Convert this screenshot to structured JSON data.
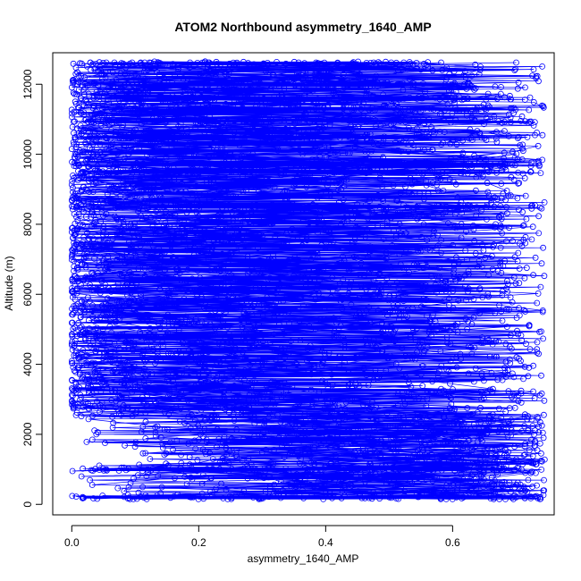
{
  "chart_data": {
    "type": "scatter",
    "title": "ATOM2 Northbound asymmetry_1640_AMP",
    "xlabel": "asymmetry_1640_AMP",
    "ylabel": "Altitude (m)",
    "xlim": [
      -0.03,
      0.76
    ],
    "ylim": [
      -300,
      12900
    ],
    "xticks": [
      0.0,
      0.2,
      0.4,
      0.6
    ],
    "xtick_labels": [
      "0.0",
      "0.2",
      "0.4",
      "0.6"
    ],
    "yticks": [
      0,
      2000,
      4000,
      6000,
      8000,
      10000,
      12000
    ],
    "ytick_labels": [
      "0",
      "2000",
      "4000",
      "6000",
      "8000",
      "10000",
      "12000"
    ],
    "grid": false,
    "legend": "none",
    "marker": "open-circle",
    "connect_points": true,
    "series_color": "#0000ff",
    "x_extent": [
      0.0,
      0.745
    ],
    "y_extent": [
      150,
      12620
    ],
    "levels": [
      {
        "altitude": 12600,
        "x_min": 0.01,
        "x_max": 0.58
      },
      {
        "altitude": 12000,
        "x_min": 0.01,
        "x_max": 0.63
      },
      {
        "altitude": 11600,
        "x_min": 0.02,
        "x_max": 0.73
      },
      {
        "altitude": 11300,
        "x_min": 0.01,
        "x_max": 0.71
      },
      {
        "altitude": 10950,
        "x_min": 0.0,
        "x_max": 0.73
      },
      {
        "altitude": 10500,
        "x_min": 0.01,
        "x_max": 0.72
      },
      {
        "altitude": 9700,
        "x_min": 0.01,
        "x_max": 0.75
      },
      {
        "altitude": 9500,
        "x_min": 0.0,
        "x_max": 0.73
      },
      {
        "altitude": 8500,
        "x_min": 0.02,
        "x_max": 0.74
      },
      {
        "altitude": 1000,
        "x_min": 0.0,
        "x_max": 0.72
      },
      {
        "altitude": 200,
        "x_min": 0.0,
        "x_max": 0.74
      }
    ]
  }
}
